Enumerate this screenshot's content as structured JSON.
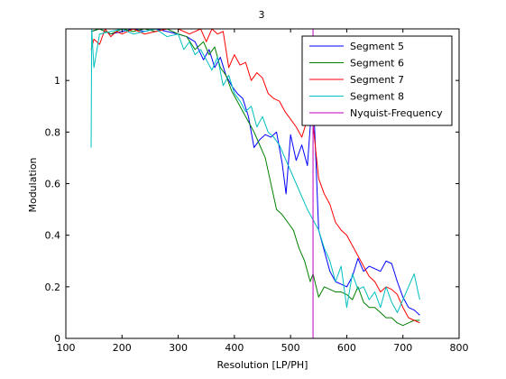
{
  "chart_data": {
    "type": "line",
    "title": "3",
    "xlabel": "Resolution [LP/PH]",
    "ylabel": "Modulation",
    "xlim": [
      100,
      800
    ],
    "ylim": [
      0,
      1.2
    ],
    "xticks": [
      100,
      200,
      300,
      400,
      500,
      600,
      700,
      800
    ],
    "yticks": [
      0,
      0.2,
      0.4,
      0.6,
      0.8,
      1
    ],
    "grid": false,
    "legend_position": "top-right",
    "series": [
      {
        "name": "Segment 5",
        "color": "#0000ff",
        "x": [
          145,
          160,
          180,
          200,
          220,
          240,
          260,
          280,
          300,
          315,
          330,
          345,
          355,
          365,
          375,
          385,
          395,
          405,
          415,
          425,
          435,
          445,
          455,
          465,
          475,
          485,
          492,
          500,
          510,
          520,
          530,
          540,
          550,
          560,
          570,
          580,
          590,
          600,
          610,
          620,
          630,
          640,
          650,
          660,
          670,
          680,
          690,
          700,
          710,
          720,
          730
        ],
        "y": [
          1.19,
          1.2,
          1.18,
          1.19,
          1.2,
          1.19,
          1.2,
          1.19,
          1.18,
          1.17,
          1.15,
          1.08,
          1.12,
          1.05,
          1.09,
          1.02,
          0.98,
          0.95,
          0.93,
          0.86,
          0.74,
          0.77,
          0.79,
          0.78,
          0.8,
          0.68,
          0.56,
          0.79,
          0.69,
          0.75,
          0.67,
          0.97,
          0.42,
          0.34,
          0.26,
          0.22,
          0.21,
          0.2,
          0.24,
          0.31,
          0.26,
          0.28,
          0.27,
          0.26,
          0.3,
          0.29,
          0.22,
          0.16,
          0.12,
          0.11,
          0.09
        ]
      },
      {
        "name": "Segment 6",
        "color": "#008000",
        "x": [
          145,
          160,
          180,
          200,
          220,
          240,
          260,
          280,
          300,
          315,
          330,
          345,
          355,
          365,
          375,
          385,
          395,
          405,
          415,
          425,
          435,
          445,
          455,
          465,
          475,
          485,
          495,
          505,
          515,
          525,
          535,
          540,
          550,
          560,
          570,
          580,
          590,
          600,
          610,
          620,
          630,
          640,
          650,
          660,
          670,
          680,
          690,
          700,
          710,
          720,
          730
        ],
        "y": [
          1.19,
          1.2,
          1.18,
          1.2,
          1.19,
          1.2,
          1.19,
          1.2,
          1.18,
          1.17,
          1.12,
          1.15,
          1.1,
          1.13,
          1.05,
          1.02,
          0.96,
          0.92,
          0.88,
          0.84,
          0.8,
          0.75,
          0.7,
          0.6,
          0.5,
          0.48,
          0.45,
          0.42,
          0.35,
          0.3,
          0.22,
          0.25,
          0.16,
          0.2,
          0.19,
          0.18,
          0.18,
          0.17,
          0.15,
          0.2,
          0.14,
          0.12,
          0.12,
          0.1,
          0.08,
          0.08,
          0.06,
          0.05,
          0.06,
          0.07,
          0.07
        ]
      },
      {
        "name": "Segment 7",
        "color": "#ff0000",
        "x": [
          145,
          150,
          160,
          170,
          180,
          190,
          200,
          220,
          240,
          260,
          280,
          300,
          320,
          340,
          350,
          360,
          370,
          380,
          390,
          400,
          410,
          420,
          430,
          440,
          450,
          460,
          470,
          480,
          490,
          500,
          510,
          520,
          530,
          540,
          550,
          560,
          570,
          580,
          590,
          600,
          610,
          620,
          630,
          640,
          650,
          660,
          670,
          680,
          690,
          700,
          710,
          720,
          730
        ],
        "y": [
          1.12,
          1.16,
          1.14,
          1.2,
          1.17,
          1.19,
          1.18,
          1.2,
          1.18,
          1.19,
          1.2,
          1.2,
          1.18,
          1.2,
          1.15,
          1.2,
          1.18,
          1.19,
          1.05,
          1.1,
          1.06,
          1.07,
          1.0,
          1.03,
          1.01,
          0.95,
          0.93,
          0.92,
          0.88,
          0.85,
          0.82,
          0.78,
          0.85,
          0.83,
          0.62,
          0.56,
          0.52,
          0.45,
          0.42,
          0.4,
          0.36,
          0.32,
          0.28,
          0.24,
          0.22,
          0.18,
          0.2,
          0.19,
          0.17,
          0.12,
          0.08,
          0.07,
          0.06
        ]
      },
      {
        "name": "Segment 8",
        "color": "#00bfbf",
        "x": [
          145,
          146,
          150,
          160,
          180,
          200,
          220,
          240,
          260,
          280,
          300,
          310,
          320,
          330,
          340,
          350,
          360,
          370,
          380,
          390,
          400,
          410,
          420,
          430,
          440,
          450,
          460,
          470,
          480,
          490,
          500,
          510,
          520,
          530,
          540,
          550,
          560,
          570,
          580,
          590,
          600,
          610,
          620,
          630,
          640,
          650,
          660,
          670,
          680,
          690,
          700,
          710,
          720,
          730
        ],
        "y": [
          0.74,
          1.2,
          1.05,
          1.18,
          1.19,
          1.2,
          1.18,
          1.19,
          1.2,
          1.17,
          1.18,
          1.12,
          1.15,
          1.1,
          1.12,
          1.08,
          1.04,
          1.09,
          0.98,
          1.02,
          0.95,
          0.92,
          0.88,
          0.9,
          0.82,
          0.86,
          0.8,
          0.78,
          0.75,
          0.7,
          0.65,
          0.6,
          0.55,
          0.5,
          0.46,
          0.42,
          0.35,
          0.3,
          0.22,
          0.28,
          0.12,
          0.25,
          0.19,
          0.2,
          0.15,
          0.18,
          0.12,
          0.2,
          0.14,
          0.1,
          0.15,
          0.2,
          0.25,
          0.15
        ]
      },
      {
        "name": "Nyquist-Frequency",
        "color": "#bf00bf",
        "x": [
          540,
          540
        ],
        "y": [
          0,
          1.2
        ]
      }
    ]
  }
}
